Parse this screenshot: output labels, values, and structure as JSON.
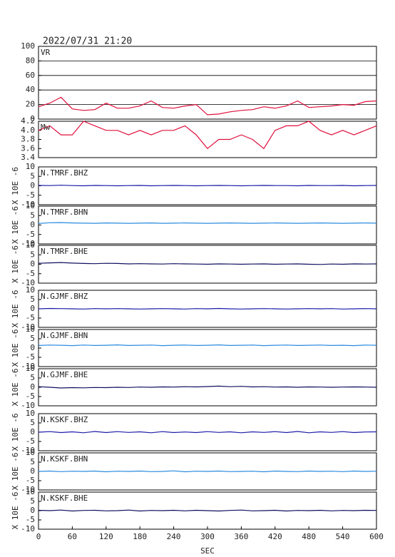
{
  "chart_data": [
    {
      "type": "line",
      "title": "2022/07/31 21:20",
      "label": "VR",
      "color": "#e0103c",
      "grid": true,
      "x": [
        0,
        20,
        40,
        60,
        80,
        100,
        120,
        140,
        160,
        180,
        200,
        220,
        240,
        260,
        280,
        300,
        320,
        340,
        360,
        380,
        400,
        420,
        440,
        460,
        480,
        500,
        520,
        540,
        560,
        580,
        600
      ],
      "values": [
        17,
        22,
        30,
        14,
        12,
        13,
        22,
        15,
        15,
        18,
        25,
        16,
        15,
        18,
        20,
        6,
        7,
        10,
        12,
        13,
        17,
        15,
        18,
        25,
        16,
        17,
        18,
        20,
        19,
        24,
        25
      ],
      "ylim": [
        0,
        100
      ],
      "yticks": [
        0,
        20,
        40,
        60,
        80,
        100
      ]
    },
    {
      "type": "line",
      "label": "Mw",
      "color": "#e0103c",
      "x": [
        0,
        20,
        40,
        60,
        80,
        100,
        120,
        140,
        160,
        180,
        200,
        220,
        240,
        260,
        280,
        300,
        320,
        340,
        360,
        380,
        400,
        420,
        440,
        460,
        480,
        500,
        520,
        540,
        560,
        580,
        600
      ],
      "values": [
        4.0,
        4.1,
        3.9,
        3.9,
        4.2,
        4.1,
        4.0,
        4.0,
        3.9,
        4.0,
        3.9,
        4.0,
        4.0,
        4.1,
        3.9,
        3.6,
        3.8,
        3.8,
        3.9,
        3.8,
        3.6,
        4.0,
        4.1,
        4.1,
        4.2,
        4.0,
        3.9,
        4.0,
        3.9,
        4.0,
        4.1
      ],
      "ylim": [
        3.4,
        4.2
      ],
      "yticks": [
        3.4,
        3.6,
        3.8,
        {
          "value": 4,
          "label": "4.0"
        },
        4.2
      ]
    },
    {
      "type": "line",
      "label": "N.TMRF.BHZ",
      "ylabel": "X 10E -6",
      "color": "#1c1ca8",
      "x": [
        0,
        20,
        40,
        60,
        80,
        100,
        120,
        140,
        160,
        180,
        200,
        220,
        240,
        260,
        280,
        300,
        320,
        340,
        360,
        380,
        400,
        420,
        440,
        460,
        480,
        500,
        520,
        540,
        560,
        580,
        600
      ],
      "values": [
        0.2,
        0.1,
        0.3,
        0.1,
        0,
        0.2,
        0.1,
        0,
        0.1,
        0.2,
        0,
        0.1,
        0.2,
        0.1,
        0,
        0.1,
        0.2,
        0.1,
        0,
        0.1,
        0.2,
        0.1,
        0.1,
        0,
        0.2,
        0.1,
        0.1,
        0.2,
        0,
        0.1,
        0.2
      ],
      "ylim": [
        -10,
        10
      ],
      "yticks": [
        -10,
        -5,
        0,
        5,
        10
      ]
    },
    {
      "type": "line",
      "label": "N.TMRF.BHN",
      "ylabel": "X 10E -6",
      "color": "#2a8ae0",
      "x": [
        0,
        20,
        40,
        60,
        80,
        100,
        120,
        140,
        160,
        180,
        200,
        220,
        240,
        260,
        280,
        300,
        320,
        340,
        360,
        380,
        400,
        420,
        440,
        460,
        480,
        500,
        520,
        540,
        560,
        580,
        600
      ],
      "values": [
        0.8,
        1.2,
        1.3,
        1.1,
        1,
        0.9,
        1.1,
        1,
        0.9,
        1,
        1.1,
        0.9,
        1,
        1.1,
        1,
        0.9,
        1,
        1.1,
        1,
        0.9,
        1,
        1.1,
        1,
        0.9,
        1,
        1.1,
        1,
        0.9,
        1,
        1.1,
        1
      ],
      "ylim": [
        -10,
        10
      ],
      "yticks": [
        -10,
        -5,
        0,
        5,
        10
      ]
    },
    {
      "type": "line",
      "label": "N.TMRF.BHE",
      "ylabel": "X 10E -6",
      "color": "#101060",
      "x": [
        0,
        20,
        40,
        60,
        80,
        100,
        120,
        140,
        160,
        180,
        200,
        220,
        240,
        260,
        280,
        300,
        320,
        340,
        360,
        380,
        400,
        420,
        440,
        460,
        480,
        500,
        520,
        540,
        560,
        580,
        600
      ],
      "values": [
        0.5,
        0.7,
        0.9,
        0.6,
        0.4,
        0.3,
        0.5,
        0.4,
        0.2,
        0.3,
        0.2,
        0.1,
        0.3,
        0.2,
        0.1,
        0,
        0.2,
        0.1,
        0,
        0.1,
        0.2,
        0,
        0.1,
        0.2,
        0,
        -0.1,
        0.1,
        0,
        0.2,
        0.1,
        0.2
      ],
      "ylim": [
        -10,
        10
      ],
      "yticks": [
        -10,
        -5,
        0,
        5,
        10
      ]
    },
    {
      "type": "line",
      "label": "N.GJMF.BHZ",
      "ylabel": "X 10E -6",
      "color": "#1c1ca8",
      "x": [
        0,
        20,
        40,
        60,
        80,
        100,
        120,
        140,
        160,
        180,
        200,
        220,
        240,
        260,
        280,
        300,
        320,
        340,
        360,
        380,
        400,
        420,
        440,
        460,
        480,
        500,
        520,
        540,
        560,
        580,
        600
      ],
      "values": [
        0,
        0.2,
        0.1,
        0,
        -0.1,
        0.1,
        0,
        0.1,
        0,
        -0.1,
        0,
        0.1,
        0,
        -0.1,
        0.1,
        0,
        0.2,
        0,
        -0.1,
        0,
        0.1,
        0,
        -0.1,
        0,
        0.1,
        0,
        0.1,
        -0.1,
        0,
        0.1,
        0
      ],
      "ylim": [
        -10,
        10
      ],
      "yticks": [
        -10,
        -5,
        0,
        5,
        10
      ]
    },
    {
      "type": "line",
      "label": "N.GJMF.BHN",
      "ylabel": "X 10E -6",
      "color": "#2a8ae0",
      "x": [
        0,
        20,
        40,
        60,
        80,
        100,
        120,
        140,
        160,
        180,
        200,
        220,
        240,
        260,
        280,
        300,
        320,
        340,
        360,
        380,
        400,
        420,
        440,
        460,
        480,
        500,
        520,
        540,
        560,
        580,
        600
      ],
      "values": [
        1.4,
        1.6,
        1.5,
        1.3,
        1.6,
        1.4,
        1.5,
        1.7,
        1.4,
        1.5,
        1.6,
        1.3,
        1.5,
        1.6,
        1.4,
        1.5,
        1.7,
        1.4,
        1.5,
        1.6,
        1.3,
        1.5,
        1.6,
        1.4,
        1.5,
        1.6,
        1.4,
        1.5,
        1.3,
        1.6,
        1.5
      ],
      "ylim": [
        -10,
        10
      ],
      "yticks": [
        -10,
        -5,
        0,
        5,
        10
      ]
    },
    {
      "type": "line",
      "label": "N.GJMF.BHE",
      "ylabel": "X 10E -6",
      "color": "#101060",
      "x": [
        0,
        20,
        40,
        60,
        80,
        100,
        120,
        140,
        160,
        180,
        200,
        220,
        240,
        260,
        280,
        300,
        320,
        340,
        360,
        380,
        400,
        420,
        440,
        460,
        480,
        500,
        520,
        540,
        560,
        580,
        600
      ],
      "values": [
        0.3,
        0,
        -0.4,
        -0.2,
        -0.3,
        -0.1,
        -0.2,
        0,
        -0.1,
        0.1,
        0,
        0.2,
        0.1,
        0.3,
        0.2,
        0.4,
        0.6,
        0.3,
        0.5,
        0.2,
        0.3,
        0.1,
        0.2,
        0,
        0.2,
        0.1,
        0,
        0.1,
        0.2,
        0.1,
        0
      ],
      "ylim": [
        -10,
        10
      ],
      "yticks": [
        -10,
        -5,
        0,
        5,
        10
      ]
    },
    {
      "type": "line",
      "label": "N.KSKF.BHZ",
      "ylabel": "X 10E -6",
      "color": "#1c1ca8",
      "x": [
        0,
        20,
        40,
        60,
        80,
        100,
        120,
        140,
        160,
        180,
        200,
        220,
        240,
        260,
        280,
        300,
        320,
        340,
        360,
        380,
        400,
        420,
        440,
        460,
        480,
        500,
        520,
        540,
        560,
        580,
        600
      ],
      "values": [
        0,
        0.3,
        -0.2,
        0.2,
        -0.3,
        0.4,
        -0.2,
        0.3,
        -0.1,
        0.2,
        -0.3,
        0.3,
        -0.2,
        0.1,
        -0.2,
        0.3,
        -0.1,
        0.2,
        -0.3,
        0.2,
        -0.1,
        0.3,
        -0.2,
        0.4,
        -0.3,
        0.2,
        -0.1,
        0.3,
        -0.2,
        0.1,
        0.2
      ],
      "ylim": [
        -10,
        10
      ],
      "yticks": [
        -10,
        -5,
        0,
        5,
        10
      ]
    },
    {
      "type": "line",
      "label": "N.KSKF.BHN",
      "ylabel": "X 10E -6",
      "color": "#2a8ae0",
      "x": [
        0,
        20,
        40,
        60,
        80,
        100,
        120,
        140,
        160,
        180,
        200,
        220,
        240,
        260,
        280,
        300,
        320,
        340,
        360,
        380,
        400,
        420,
        440,
        460,
        480,
        500,
        520,
        540,
        560,
        580,
        600
      ],
      "values": [
        0,
        0.2,
        -0.1,
        0.1,
        0,
        0.2,
        -0.2,
        0.1,
        0,
        0.2,
        -0.1,
        0,
        0.3,
        -0.2,
        0.1,
        0,
        0.2,
        -0.1,
        0,
        0.1,
        -0.2,
        0.2,
        0,
        -0.1,
        0.2,
        0,
        0.1,
        -0.1,
        0.2,
        0,
        0.1
      ],
      "ylim": [
        -10,
        10
      ],
      "yticks": [
        -10,
        -5,
        0,
        5,
        10
      ]
    },
    {
      "type": "line",
      "label": "N.KSKF.BHE",
      "ylabel": "X 10E -6",
      "xlabel": "SEC",
      "color": "#101060",
      "x": [
        0,
        20,
        40,
        60,
        80,
        100,
        120,
        140,
        160,
        180,
        200,
        220,
        240,
        260,
        280,
        300,
        320,
        340,
        360,
        380,
        400,
        420,
        440,
        460,
        480,
        500,
        520,
        540,
        560,
        580,
        600
      ],
      "values": [
        0.2,
        0,
        0.3,
        -0.2,
        0.1,
        0.2,
        -0.1,
        0,
        0.3,
        -0.2,
        0.1,
        0,
        0.2,
        -0.1,
        0.2,
        0,
        -0.2,
        0.1,
        0.3,
        -0.1,
        0,
        0.2,
        -0.2,
        0.1,
        0,
        0.2,
        -0.1,
        0.1,
        0,
        0.2,
        0.1
      ],
      "ylim": [
        -10,
        10
      ],
      "yticks": [
        -10,
        -5,
        0,
        5,
        10
      ],
      "xlim": [
        0,
        600
      ],
      "xticks": [
        0,
        60,
        120,
        180,
        240,
        300,
        360,
        420,
        480,
        540,
        600
      ]
    }
  ]
}
